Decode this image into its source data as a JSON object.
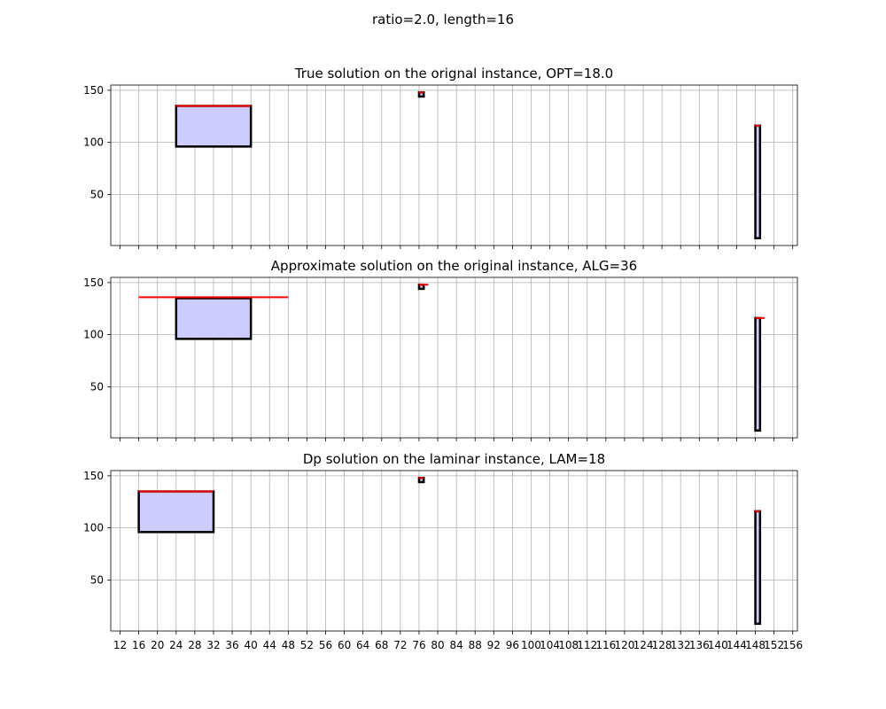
{
  "figure": {
    "suptitle": "ratio=2.0, length=16"
  },
  "chart_data": [
    {
      "type": "interval_boxes",
      "title": "True solution on the orignal instance, OPT=18.0",
      "xlim": [
        10,
        157
      ],
      "ylim": [
        1,
        155
      ],
      "xticks": [
        12,
        16,
        20,
        24,
        28,
        32,
        36,
        40,
        44,
        48,
        52,
        56,
        60,
        64,
        68,
        72,
        76,
        80,
        84,
        88,
        92,
        96,
        100,
        104,
        108,
        112,
        116,
        120,
        124,
        128,
        132,
        136,
        140,
        144,
        148,
        152,
        156
      ],
      "show_xtick_labels": false,
      "yticks": [
        50,
        100,
        150
      ],
      "grid": true,
      "boxes": [
        {
          "x0": 24,
          "x1": 40,
          "y0": 96,
          "y1": 135
        },
        {
          "x0": 76,
          "x1": 77,
          "y0": 144,
          "y1": 148
        },
        {
          "x0": 148,
          "x1": 149,
          "y0": 8,
          "y1": 116
        }
      ],
      "solution_segments": [
        {
          "x0": 24,
          "x1": 40,
          "y": 135
        },
        {
          "x0": 76,
          "x1": 77,
          "y": 148
        },
        {
          "x0": 148,
          "x1": 149,
          "y": 116
        }
      ],
      "colors": {
        "fill": "#ccccff",
        "edge": "#000000",
        "solution": "#ff0000",
        "grid": "#b0b0b0"
      }
    },
    {
      "type": "interval_boxes",
      "title": "Approximate solution on the original instance, ALG=36",
      "xlim": [
        10,
        157
      ],
      "ylim": [
        1,
        155
      ],
      "xticks": [
        12,
        16,
        20,
        24,
        28,
        32,
        36,
        40,
        44,
        48,
        52,
        56,
        60,
        64,
        68,
        72,
        76,
        80,
        84,
        88,
        92,
        96,
        100,
        104,
        108,
        112,
        116,
        120,
        124,
        128,
        132,
        136,
        140,
        144,
        148,
        152,
        156
      ],
      "show_xtick_labels": false,
      "yticks": [
        50,
        100,
        150
      ],
      "grid": true,
      "boxes": [
        {
          "x0": 24,
          "x1": 40,
          "y0": 96,
          "y1": 135
        },
        {
          "x0": 76,
          "x1": 77,
          "y0": 144,
          "y1": 148
        },
        {
          "x0": 148,
          "x1": 149,
          "y0": 8,
          "y1": 116
        }
      ],
      "solution_segments": [
        {
          "x0": 16,
          "x1": 48,
          "y": 136
        },
        {
          "x0": 76,
          "x1": 78,
          "y": 148
        },
        {
          "x0": 148,
          "x1": 150,
          "y": 116
        }
      ],
      "colors": {
        "fill": "#ccccff",
        "edge": "#000000",
        "solution": "#ff0000",
        "grid": "#b0b0b0"
      }
    },
    {
      "type": "interval_boxes",
      "title": "Dp solution on the laminar instance, LAM=18",
      "xlim": [
        10,
        157
      ],
      "ylim": [
        1,
        155
      ],
      "xticks": [
        12,
        16,
        20,
        24,
        28,
        32,
        36,
        40,
        44,
        48,
        52,
        56,
        60,
        64,
        68,
        72,
        76,
        80,
        84,
        88,
        92,
        96,
        100,
        104,
        108,
        112,
        116,
        120,
        124,
        128,
        132,
        136,
        140,
        144,
        148,
        152,
        156
      ],
      "show_xtick_labels": true,
      "yticks": [
        50,
        100,
        150
      ],
      "grid": true,
      "boxes": [
        {
          "x0": 16,
          "x1": 32,
          "y0": 96,
          "y1": 135
        },
        {
          "x0": 76,
          "x1": 77,
          "y0": 144,
          "y1": 148
        },
        {
          "x0": 148,
          "x1": 149,
          "y0": 8,
          "y1": 116
        }
      ],
      "solution_segments": [
        {
          "x0": 16,
          "x1": 32,
          "y": 135
        },
        {
          "x0": 76,
          "x1": 77,
          "y": 148
        },
        {
          "x0": 148,
          "x1": 149,
          "y": 116
        }
      ],
      "colors": {
        "fill": "#ccccff",
        "edge": "#000000",
        "solution": "#ff0000",
        "grid": "#b0b0b0"
      }
    }
  ]
}
